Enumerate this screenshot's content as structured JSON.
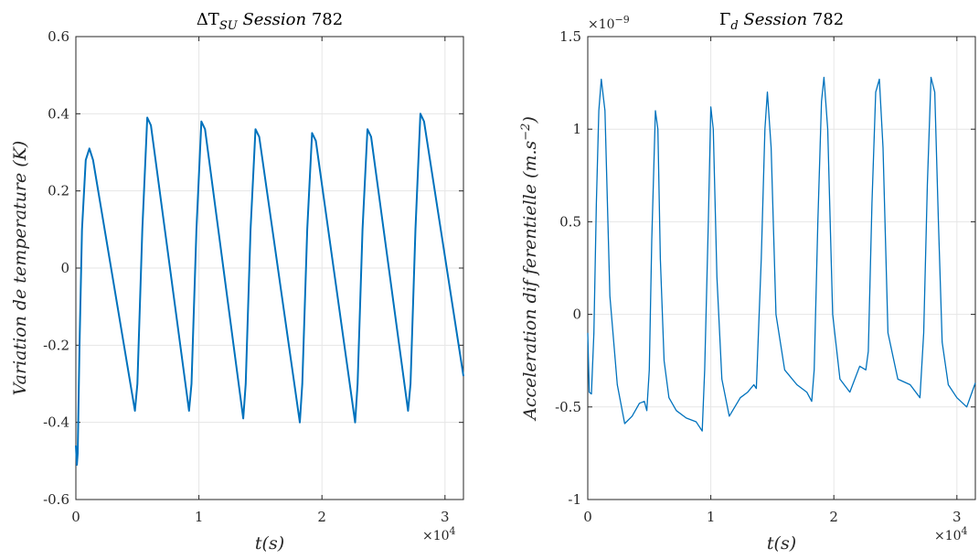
{
  "chart_data": [
    {
      "type": "line",
      "title": "ΔT_SU Session 782",
      "title_parts": {
        "symbol": "ΔT",
        "subscript": "SU",
        "italic": "Session",
        "number": "782"
      },
      "xlabel": "t(s)",
      "ylabel": "Variation de temperature (K)",
      "xlim": [
        0,
        31500
      ],
      "ylim": [
        -0.6,
        0.6
      ],
      "x_exponent_label": "×10^4",
      "x_exponent_parts": {
        "base": "×10",
        "power": "4"
      },
      "x_ticks": [
        0,
        10000,
        20000,
        30000
      ],
      "x_tick_labels": [
        "0",
        "1",
        "2",
        "3"
      ],
      "y_ticks": [
        -0.6,
        -0.4,
        -0.2,
        0,
        0.2,
        0.4,
        0.6
      ],
      "y_tick_labels": [
        "-0.6",
        "-0.4",
        "-0.2",
        "0",
        "0.2",
        "0.4",
        "0.6"
      ],
      "grid": true,
      "color": "#0072bd",
      "series": [
        {
          "x": [
            0,
            80,
            150,
            300,
            500,
            800,
            1100,
            1400,
            4800,
            5000,
            5400,
            5800,
            6100,
            9200,
            9400,
            9800,
            10200,
            10500,
            13600,
            13800,
            14200,
            14600,
            14900,
            18200,
            18400,
            18800,
            19200,
            19500,
            22700,
            22900,
            23300,
            23700,
            24000,
            27000,
            27200,
            27600,
            28000,
            28300,
            31500
          ],
          "y": [
            -0.46,
            -0.51,
            -0.48,
            -0.2,
            0.1,
            0.28,
            0.31,
            0.28,
            -0.37,
            -0.3,
            0.1,
            0.39,
            0.37,
            -0.37,
            -0.3,
            0.1,
            0.38,
            0.36,
            -0.39,
            -0.3,
            0.1,
            0.36,
            0.34,
            -0.4,
            -0.3,
            0.1,
            0.35,
            0.33,
            -0.4,
            -0.3,
            0.1,
            0.36,
            0.34,
            -0.37,
            -0.3,
            0.1,
            0.4,
            0.38,
            -0.28
          ]
        }
      ]
    },
    {
      "type": "line",
      "title": "Γ_d Session 782",
      "title_parts": {
        "symbol": "Γ",
        "subscript": "d",
        "italic": "Session",
        "number": "782"
      },
      "xlabel": "t(s)",
      "ylabel": "Acceleration dif ferentielle (m.s^-2)",
      "ylabel_parts": {
        "text": "Acceleration dif ferentielle (m.s",
        "power": "−2",
        "close": ")"
      },
      "xlim": [
        0,
        31500
      ],
      "ylim": [
        -1e-09,
        1.5e-09
      ],
      "x_exponent_label": "×10^4",
      "x_exponent_parts": {
        "base": "×10",
        "power": "4"
      },
      "y_exponent_label": "×10^-9",
      "y_exponent_parts": {
        "base": "×10",
        "power": "−9"
      },
      "x_ticks": [
        0,
        10000,
        20000,
        30000
      ],
      "x_tick_labels": [
        "0",
        "1",
        "2",
        "3"
      ],
      "y_ticks": [
        -1e-09,
        -5e-10,
        0,
        5e-10,
        1e-09,
        1.5e-09
      ],
      "y_tick_labels": [
        "-1",
        "-0.5",
        "0",
        "0.5",
        "1",
        "1.5"
      ],
      "grid": true,
      "color": "#0072bd",
      "series": [
        {
          "x": [
            0,
            120,
            300,
            500,
            700,
            900,
            1100,
            1400,
            1800,
            2400,
            3000,
            3600,
            4200,
            4600,
            4800,
            5000,
            5200,
            5500,
            5700,
            5900,
            6200,
            6600,
            7200,
            8000,
            8800,
            9300,
            9500,
            9800,
            10000,
            10200,
            10500,
            10900,
            11500,
            12400,
            13000,
            13500,
            13700,
            14100,
            14400,
            14600,
            14900,
            15300,
            16000,
            17000,
            17800,
            18200,
            18400,
            18700,
            19000,
            19200,
            19500,
            19900,
            20500,
            21300,
            22100,
            22600,
            22800,
            23100,
            23400,
            23700,
            24000,
            24400,
            25200,
            26200,
            27000,
            27300,
            27600,
            27900,
            28200,
            28500,
            28800,
            29300,
            30000,
            30800,
            31500
          ],
          "y": [
            -1e-10,
            -4.2e-10,
            -4.3e-10,
            -1e-10,
            6e-10,
            1.1e-09,
            1.27e-09,
            1.1e-09,
            1e-10,
            -3.8e-10,
            -5.9e-10,
            -5.5e-10,
            -4.8e-10,
            -4.7e-10,
            -5.2e-10,
            -3e-10,
            4e-10,
            1.1e-09,
            1e-09,
            3e-10,
            -2.5e-10,
            -4.5e-10,
            -5.2e-10,
            -5.6e-10,
            -5.8e-10,
            -6.3e-10,
            -3e-10,
            5e-10,
            1.12e-09,
            1e-09,
            2e-10,
            -3.5e-10,
            -5.5e-10,
            -4.5e-10,
            -4.2e-10,
            -3.8e-10,
            -4e-10,
            3e-10,
            1e-09,
            1.2e-09,
            9e-10,
            0.0,
            -3e-10,
            -3.8e-10,
            -4.2e-10,
            -4.7e-10,
            -3e-10,
            5e-10,
            1.15e-09,
            1.28e-09,
            1e-09,
            0.0,
            -3.5e-10,
            -4.2e-10,
            -2.8e-10,
            -3e-10,
            -2e-10,
            6e-10,
            1.2e-09,
            1.27e-09,
            9e-10,
            -1e-10,
            -3.5e-10,
            -3.8e-10,
            -4.5e-10,
            -1e-10,
            7e-10,
            1.28e-09,
            1.2e-09,
            5e-10,
            -1.5e-10,
            -3.8e-10,
            -4.5e-10,
            -5e-10,
            -3.7e-10
          ]
        }
      ]
    }
  ]
}
